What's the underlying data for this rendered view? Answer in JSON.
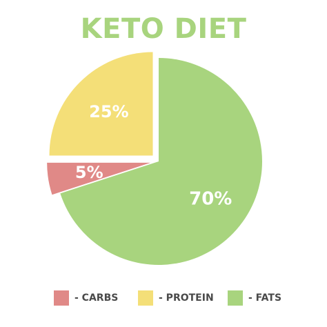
{
  "chart_data": {
    "type": "pie",
    "title": "KETO DIET",
    "slices": [
      {
        "name": "FATS",
        "value": 70,
        "label": "70%",
        "color": "#a8d47e"
      },
      {
        "name": "CARBS",
        "value": 5,
        "label": "5%",
        "color": "#e08987"
      },
      {
        "name": "PROTEIN",
        "value": 25,
        "label": "25%",
        "color": "#f4df78"
      }
    ],
    "legend": {
      "placement": "bottom",
      "items": [
        {
          "label": "- CARBS",
          "color": "#e08987"
        },
        {
          "label": "- PROTEIN",
          "color": "#f4df78"
        },
        {
          "label": "- FATS",
          "color": "#a8d47e"
        }
      ]
    }
  },
  "colors": {
    "title": "#a8d47e",
    "slice_label": "#ffffff",
    "legend_text": "#4a4a4a"
  }
}
